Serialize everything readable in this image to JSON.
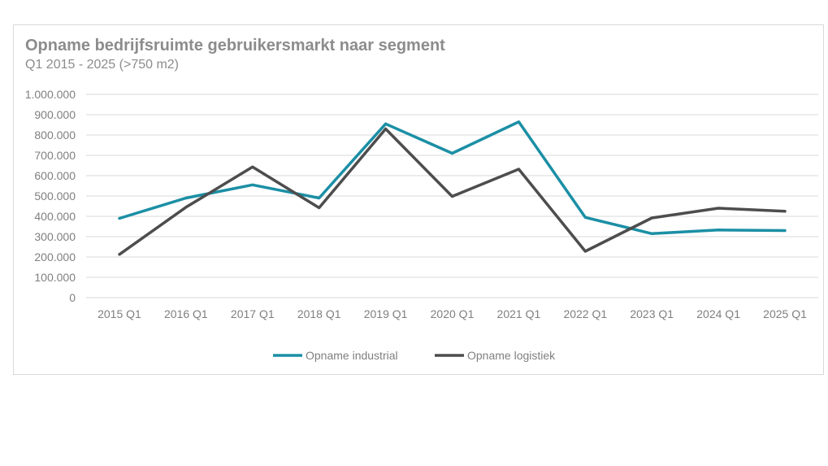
{
  "chart_data": {
    "type": "line",
    "title": "Opname bedrijfsruimte gebruikersmarkt naar segment",
    "subtitle": "Q1 2015 - 2025 (>750 m2)",
    "categories": [
      "2015 Q1",
      "2016 Q1",
      "2017 Q1",
      "2018 Q1",
      "2019 Q1",
      "2020 Q1",
      "2021 Q1",
      "2022 Q1",
      "2023 Q1",
      "2024 Q1",
      "2025 Q1"
    ],
    "series": [
      {
        "name": "Opname industrial",
        "color": "#1b8fa5",
        "values": [
          390000,
          490000,
          555000,
          490000,
          855000,
          710000,
          865000,
          395000,
          315000,
          333000,
          330000
        ]
      },
      {
        "name": "Opname logistiek",
        "color": "#4d4d4d",
        "values": [
          213000,
          445000,
          643000,
          442000,
          830000,
          498000,
          632000,
          228000,
          392000,
          440000,
          425000
        ]
      }
    ],
    "ylim": [
      0,
      1000000
    ],
    "yticks": [
      0,
      100000,
      200000,
      300000,
      400000,
      500000,
      600000,
      700000,
      800000,
      900000,
      1000000
    ],
    "ytick_labels": [
      "0",
      "100.000",
      "200.000",
      "300.000",
      "400.000",
      "500.000",
      "600.000",
      "700.000",
      "800.000",
      "900.000",
      "1.000.000"
    ],
    "grid": true,
    "legend_position": "bottom"
  }
}
